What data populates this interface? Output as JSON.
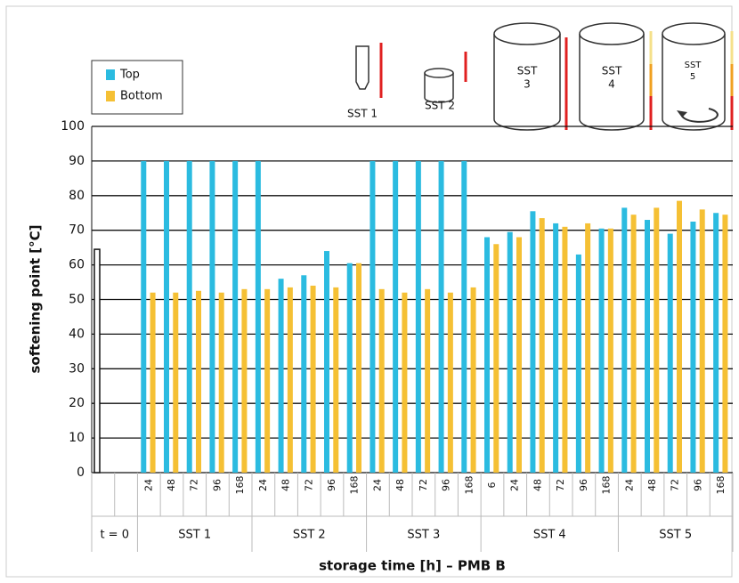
{
  "chart_data": {
    "type": "bar",
    "y_label": "softening point [°C]",
    "x_label": "storage time [h] – PMB B",
    "ylim": [
      0,
      100
    ],
    "yticks": [
      0,
      10,
      20,
      30,
      40,
      50,
      60,
      70,
      80,
      90,
      100
    ],
    "grid": true,
    "icon_labels": [
      "SST 1",
      "SST 2",
      [
        "SST",
        "3"
      ],
      [
        "SST",
        "4"
      ],
      [
        "SST",
        "5"
      ]
    ],
    "groups": [
      {
        "label": "t = 0",
        "categories": [
          null,
          null
        ]
      },
      {
        "label": "SST 1",
        "categories": [
          "24",
          "48",
          "72",
          "96",
          "168"
        ]
      },
      {
        "label": "SST 2",
        "categories": [
          "24",
          "48",
          "72",
          "96",
          "168"
        ]
      },
      {
        "label": "SST 3",
        "categories": [
          "24",
          "48",
          "72",
          "96",
          "168"
        ]
      },
      {
        "label": "SST 4",
        "categories": [
          "6",
          "24",
          "48",
          "72",
          "96",
          "168"
        ]
      },
      {
        "label": "SST 5",
        "categories": [
          "24",
          "48",
          "72",
          "96",
          "168"
        ]
      }
    ],
    "series": [
      {
        "name": "Top",
        "color": "#2bbbe0",
        "values": [
          null,
          null,
          90,
          90,
          90,
          90,
          90,
          90,
          56,
          57,
          64,
          60.5,
          90,
          90,
          90,
          90,
          90,
          68,
          69.5,
          75.5,
          72,
          63,
          70.5,
          76.5,
          73,
          69,
          72.5,
          75
        ]
      },
      {
        "name": "Bottom",
        "color": "#f5c034",
        "values": [
          null,
          null,
          52,
          52,
          52.5,
          52,
          53,
          53,
          53.5,
          54,
          53.5,
          60.5,
          53,
          52,
          53,
          52,
          53.5,
          66,
          68,
          73.5,
          71,
          72,
          70.5,
          74.5,
          76.5,
          78.5,
          76,
          74.5
        ]
      },
      {
        "color": "#ffffff",
        "values": [
          64.5,
          null,
          null,
          null,
          null,
          null,
          null,
          null,
          null,
          null,
          null,
          null,
          null,
          null,
          null,
          null,
          null,
          null,
          null,
          null,
          null,
          null,
          null,
          null,
          null,
          null,
          null,
          null
        ]
      }
    ]
  }
}
